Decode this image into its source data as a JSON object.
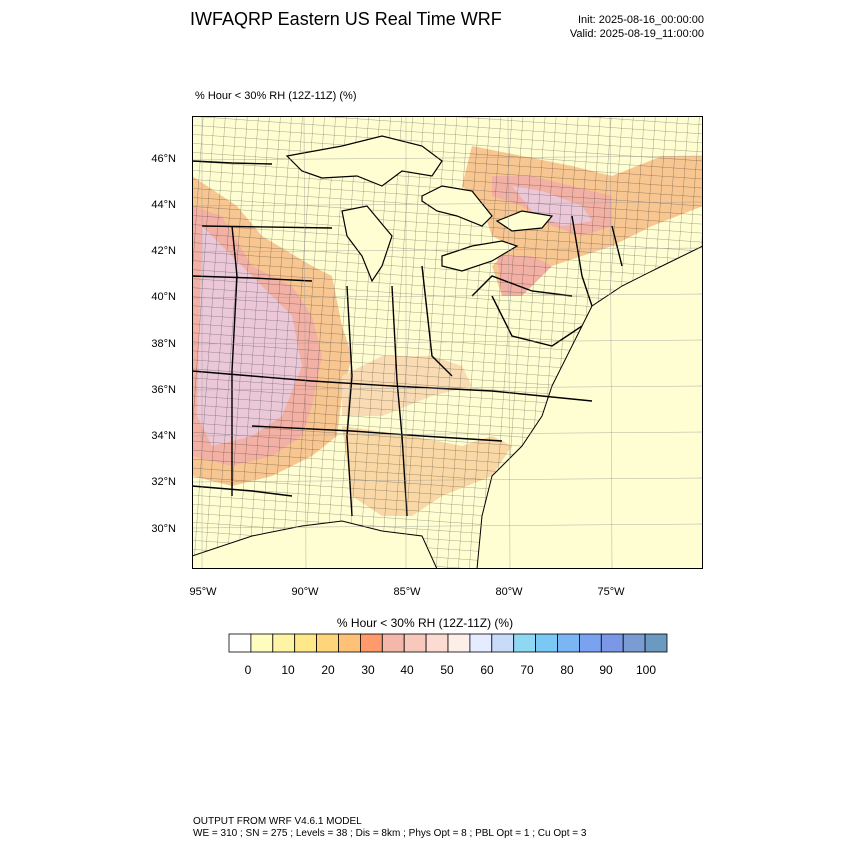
{
  "header": {
    "title": "IWFAQRP Eastern US Real Time WRF",
    "init": "Init: 2025-08-16_00:00:00",
    "valid": "Valid: 2025-08-19_11:00:00"
  },
  "plot": {
    "label": "% Hour < 30% RH (12Z-11Z)   (%)",
    "lat_labels": [
      "46°N",
      "44°N",
      "42°N",
      "40°N",
      "38°N",
      "36°N",
      "34°N",
      "32°N",
      "30°N"
    ],
    "lon_labels": [
      "95°W",
      "90°W",
      "85°W",
      "80°W",
      "75°W"
    ],
    "colors": {
      "land_background": "#fefed2",
      "frame": "#000000",
      "dry_pink": "#f2b4b4",
      "dry_orange": "#f6c08a",
      "dry_peach": "#fad9b0",
      "dry_lavender": "#e8c2d8"
    }
  },
  "colorbar": {
    "title": "% Hour < 30% RH (12Z-11Z)  (%)",
    "tick_labels": [
      "0",
      "10",
      "20",
      "30",
      "40",
      "50",
      "60",
      "70",
      "80",
      "90",
      "100"
    ],
    "colors": [
      "#ffffff",
      "#fffcc0",
      "#fff3a6",
      "#ffe88a",
      "#ffd57a",
      "#ffc178",
      "#ff9a6c",
      "#f4b7aa",
      "#f8c8bc",
      "#fcdcd2",
      "#fdeee8",
      "#e6ecff",
      "#c8dcfa",
      "#8fd8f4",
      "#7ac8f4",
      "#7ab6f4",
      "#7aa2f0",
      "#7a98e6",
      "#7a9cd2",
      "#6a9ac0"
    ]
  },
  "footer": {
    "line1": "OUTPUT FROM WRF V4.6.1 MODEL",
    "line2": "WE = 310 ; SN = 275 ; Levels = 38 ; Dis = 8km ; Phys Opt = 8 ; PBL Opt = 1 ; Cu Opt = 3"
  }
}
